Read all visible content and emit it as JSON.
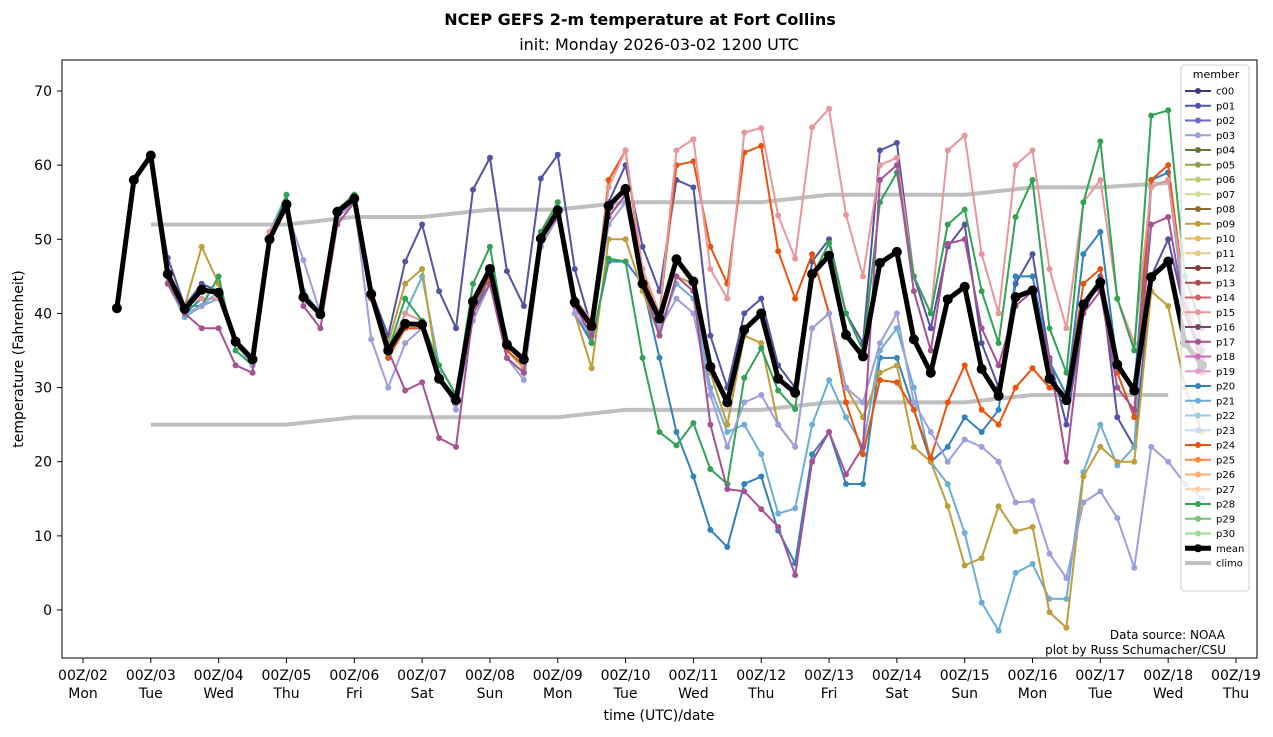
{
  "chart_data": {
    "type": "line",
    "title": "NCEP GEFS 2-m temperature at Fort Collins",
    "subtitle": "init: Monday 2026-03-02 1200 UTC",
    "xlabel": "time (UTC)/date",
    "ylabel": "temperature (Fahrenheit)",
    "ylim": [
      -6.5,
      74.2
    ],
    "xlim": [
      "2026-03-01 16Z",
      "2026-03-19 07Z"
    ],
    "grid": false,
    "legend_title": "member",
    "legend_position": "top-right",
    "annotation": [
      "Data source: NOAA",
      "plot by Russ Schumacher/CSU"
    ],
    "yticks": [
      0,
      10,
      20,
      30,
      40,
      50,
      60,
      70
    ],
    "xticks": [
      {
        "date": "00Z/02",
        "day": "Mon"
      },
      {
        "date": "00Z/03",
        "day": "Tue"
      },
      {
        "date": "00Z/04",
        "day": "Wed"
      },
      {
        "date": "00Z/05",
        "day": "Thu"
      },
      {
        "date": "00Z/06",
        "day": "Fri"
      },
      {
        "date": "00Z/07",
        "day": "Sat"
      },
      {
        "date": "00Z/08",
        "day": "Sun"
      },
      {
        "date": "00Z/09",
        "day": "Mon"
      },
      {
        "date": "00Z/10",
        "day": "Tue"
      },
      {
        "date": "00Z/11",
        "day": "Wed"
      },
      {
        "date": "00Z/12",
        "day": "Thu"
      },
      {
        "date": "00Z/13",
        "day": "Fri"
      },
      {
        "date": "00Z/14",
        "day": "Sat"
      },
      {
        "date": "00Z/15",
        "day": "Sun"
      },
      {
        "date": "00Z/16",
        "day": "Mon"
      },
      {
        "date": "00Z/17",
        "day": "Tue"
      },
      {
        "date": "00Z/18",
        "day": "Wed"
      },
      {
        "date": "00Z/19",
        "day": "Thu"
      }
    ],
    "time_start": "2026-03-02 12Z",
    "time_step_hours": 6,
    "legend": [
      {
        "name": "c00",
        "color": "#393b79"
      },
      {
        "name": "p01",
        "color": "#5254a3"
      },
      {
        "name": "p02",
        "color": "#6b6ecf"
      },
      {
        "name": "p03",
        "color": "#9c9ede"
      },
      {
        "name": "p04",
        "color": "#637939"
      },
      {
        "name": "p05",
        "color": "#8ca252"
      },
      {
        "name": "p06",
        "color": "#b5cf6b"
      },
      {
        "name": "p07",
        "color": "#cedb9c"
      },
      {
        "name": "p08",
        "color": "#8c6d31"
      },
      {
        "name": "p09",
        "color": "#bd9e39"
      },
      {
        "name": "p10",
        "color": "#e7ba52"
      },
      {
        "name": "p11",
        "color": "#e7cb94"
      },
      {
        "name": "p12",
        "color": "#843c39"
      },
      {
        "name": "p13",
        "color": "#ad494a"
      },
      {
        "name": "p14",
        "color": "#d6616b"
      },
      {
        "name": "p15",
        "color": "#e7969c"
      },
      {
        "name": "p16",
        "color": "#7b4173"
      },
      {
        "name": "p17",
        "color": "#a55194"
      },
      {
        "name": "p18",
        "color": "#ce6dbd"
      },
      {
        "name": "p19",
        "color": "#de9ed6"
      },
      {
        "name": "p20",
        "color": "#3182bd"
      },
      {
        "name": "p21",
        "color": "#6baed6"
      },
      {
        "name": "p22",
        "color": "#9ecae1"
      },
      {
        "name": "p23",
        "color": "#c6dbef"
      },
      {
        "name": "p24",
        "color": "#e6550d"
      },
      {
        "name": "p25",
        "color": "#fd8d3c"
      },
      {
        "name": "p26",
        "color": "#fdae6b"
      },
      {
        "name": "p27",
        "color": "#fdd0a2"
      },
      {
        "name": "p28",
        "color": "#31a354"
      },
      {
        "name": "p29",
        "color": "#74c476"
      },
      {
        "name": "p30",
        "color": "#a1d99b"
      },
      {
        "name": "mean",
        "color": "#000000"
      },
      {
        "name": "climo",
        "color": "#bfbfbf"
      }
    ],
    "series": [
      {
        "name": "p01",
        "color": "#5254a3",
        "values": [
          40.5,
          58,
          61,
          47.5,
          41,
          44,
          43,
          36,
          33,
          50,
          55,
          42,
          40,
          54,
          56,
          43,
          37,
          47,
          52,
          43,
          38,
          56.7,
          61,
          45.7,
          41,
          58.2,
          61.4,
          46,
          38,
          55,
          60,
          49,
          43,
          58,
          57,
          37,
          30,
          40,
          42,
          33,
          30,
          47,
          50,
          40,
          36,
          62,
          63,
          45,
          38,
          49,
          52,
          36,
          30,
          44,
          48,
          34,
          25,
          40,
          45,
          26,
          22,
          45,
          50,
          40,
          34
        ]
      },
      {
        "name": "p20",
        "color": "#3182bd",
        "values": [
          40.5,
          58,
          61,
          45,
          40,
          42,
          42,
          36,
          33,
          50,
          55,
          42,
          40,
          53,
          55,
          42,
          34,
          38,
          38,
          31,
          28,
          40,
          45,
          34,
          32,
          49,
          53,
          40,
          36,
          47,
          47,
          44,
          34,
          24,
          18,
          10.8,
          8.5,
          17,
          18,
          10.7,
          6.3,
          21,
          24,
          17,
          17,
          34,
          34,
          27,
          20,
          22,
          26,
          24,
          27,
          45,
          45,
          33.5,
          29,
          48,
          51,
          33,
          30,
          58,
          59,
          40,
          35
        ]
      },
      {
        "name": "p21",
        "color": "#6baed6",
        "values": [
          40.5,
          58,
          61,
          44,
          39.5,
          41,
          42,
          36,
          33,
          51,
          56,
          43,
          40,
          54,
          56,
          42,
          34,
          40,
          45,
          33,
          29,
          40,
          44,
          35,
          33,
          49,
          53,
          41,
          37,
          53,
          56,
          44,
          38,
          44,
          42,
          30,
          24,
          25,
          21,
          13,
          13.7,
          25,
          31,
          26,
          22,
          35,
          38,
          30,
          20,
          17,
          10.4,
          1,
          -2.8,
          5,
          6.2,
          1.5,
          1.5,
          18.6,
          25,
          19.5,
          22,
          57,
          58,
          40,
          34
        ]
      },
      {
        "name": "p09",
        "color": "#bd9e39",
        "values": [
          40.5,
          58,
          61,
          45,
          41,
          49,
          44,
          36,
          33,
          50,
          55,
          42,
          40,
          53,
          55,
          42,
          36,
          44,
          46,
          31,
          28,
          40,
          44,
          35,
          32.6,
          49,
          53,
          40,
          32.6,
          50,
          50,
          43,
          37,
          45,
          44,
          32,
          25,
          37,
          36,
          25,
          22,
          38,
          40,
          30,
          26,
          32,
          33,
          22,
          20,
          14,
          6,
          7,
          14,
          10.6,
          11.2,
          -0.3,
          -2.4,
          18,
          22,
          20,
          20,
          43,
          41,
          30,
          24
        ]
      },
      {
        "name": "p24",
        "color": "#e6550d",
        "values": [
          40.5,
          58,
          61,
          45,
          41,
          43,
          43,
          36,
          33,
          50,
          55,
          42,
          40,
          54,
          56,
          42,
          34,
          38,
          38,
          31,
          28,
          41,
          45,
          35,
          33,
          50,
          54,
          41,
          38,
          58,
          62,
          45,
          40,
          60,
          60.5,
          49,
          44,
          61.7,
          62.6,
          48.4,
          42,
          48,
          40,
          28,
          21,
          31,
          30.7,
          27,
          20.5,
          28,
          33,
          27,
          25,
          30,
          32.6,
          30,
          29,
          44,
          46,
          32,
          26,
          58,
          60,
          42,
          32
        ]
      },
      {
        "name": "p15",
        "color": "#e7969c",
        "values": [
          40.5,
          58,
          61,
          45,
          41,
          42,
          42,
          36,
          33,
          51,
          55,
          42,
          40,
          54,
          56,
          42,
          35,
          40,
          39,
          31,
          28,
          42,
          46,
          36,
          33,
          51,
          55,
          42,
          39,
          57,
          62,
          46,
          40,
          62,
          63.5,
          46,
          42,
          64.4,
          65,
          53.2,
          47.4,
          65.1,
          67.6,
          53.3,
          45,
          60,
          61,
          45,
          40,
          62,
          64,
          48,
          40,
          60,
          62,
          46,
          38,
          55,
          58,
          42,
          36,
          57,
          58,
          42,
          36
        ]
      },
      {
        "name": "p28",
        "color": "#31a354",
        "values": [
          40.5,
          58,
          61,
          44,
          41,
          41,
          45,
          35,
          33,
          50,
          56,
          42,
          40,
          54,
          56,
          42,
          35,
          42,
          39,
          33,
          29,
          44,
          49,
          36,
          34,
          51,
          55,
          42,
          36,
          47.4,
          47,
          34,
          24,
          22.2,
          25.2,
          19,
          17,
          31.3,
          35.3,
          29.6,
          27.1,
          45,
          49.5,
          40,
          35,
          55,
          59,
          45,
          40,
          52,
          54,
          43,
          36,
          53,
          58,
          38,
          32,
          55,
          63.2,
          42,
          35,
          66.7,
          67.4,
          45,
          38
        ]
      },
      {
        "name": "p03",
        "color": "#9c9ede",
        "values": [
          40.5,
          58,
          61,
          44,
          40,
          41,
          43,
          36,
          33,
          50,
          54,
          47.2,
          40,
          53,
          55,
          36.5,
          30,
          36,
          38,
          32,
          27,
          39,
          44,
          34,
          31,
          49,
          53,
          40,
          37,
          52,
          55,
          44,
          38,
          42,
          40,
          29,
          22,
          28,
          29,
          25,
          22,
          38,
          40,
          30,
          28,
          36,
          40,
          28,
          24,
          20,
          23,
          22,
          20,
          14.5,
          14.7,
          7.6,
          4.3,
          14.5,
          16,
          12.4,
          5.7,
          22,
          20,
          17,
          15
        ]
      },
      {
        "name": "p17",
        "color": "#a55194",
        "values": [
          40.5,
          58,
          61,
          44,
          40,
          38,
          38,
          33,
          32,
          50,
          54,
          41,
          38,
          52,
          55,
          42,
          35,
          29.6,
          30.7,
          23.2,
          22,
          40,
          44,
          34,
          32,
          50,
          53,
          41,
          37,
          53,
          56,
          44,
          37,
          45,
          43,
          25,
          16.3,
          16,
          13.6,
          11.2,
          4.7,
          20,
          24,
          18.3,
          22,
          58,
          60,
          43,
          35,
          49.4,
          50,
          38,
          33,
          41,
          43,
          34,
          20,
          40,
          43,
          30,
          27,
          52,
          53,
          40,
          34
        ]
      },
      {
        "name": "mean",
        "color": "#000000",
        "values": [
          40.7,
          58,
          61.3,
          45.3,
          40.6,
          43.2,
          42.8,
          36.2,
          33.8,
          50,
          54.7,
          42.2,
          39.9,
          53.7,
          55.5,
          42.6,
          35,
          38.6,
          38.5,
          31.2,
          28.3,
          41.6,
          46,
          35.8,
          33.8,
          50.1,
          53.9,
          41.5,
          38.3,
          54.5,
          56.8,
          44,
          39.3,
          47.3,
          44.3,
          32.8,
          28,
          37.8,
          40,
          31.2,
          29.3,
          45.3,
          47.8,
          37.1,
          34.2,
          46.8,
          48.3,
          36.5,
          32,
          41.9,
          43.6,
          32.5,
          28.9,
          42.2,
          43.1,
          31.2,
          28.3,
          41.2,
          44.2,
          33.1,
          29.6,
          44.9,
          47,
          36,
          33
        ]
      }
    ],
    "climo": {
      "dates": [
        "03",
        "04",
        "05",
        "06",
        "07",
        "08",
        "09",
        "10",
        "11",
        "12",
        "13",
        "14",
        "15",
        "16",
        "17",
        "18"
      ],
      "high": [
        52,
        52,
        52,
        53,
        53,
        54,
        54,
        55,
        55,
        55,
        56,
        56,
        56,
        57,
        57,
        57.6
      ],
      "low": [
        25,
        25,
        25,
        26,
        26,
        26,
        26,
        27,
        27,
        27,
        28,
        28,
        28,
        29,
        29,
        29
      ]
    }
  }
}
